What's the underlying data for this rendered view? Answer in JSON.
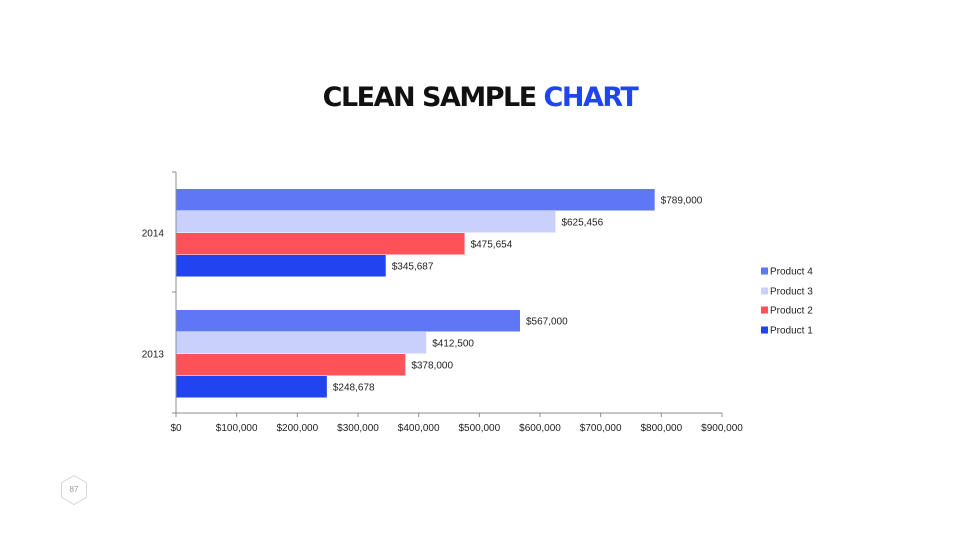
{
  "slide": {
    "title_main": "CLEAN SAMPLE ",
    "title_accent": "CHART",
    "page_number": "87"
  },
  "colors": {
    "title": "#111111",
    "accent": "#1f44f0",
    "product4": "#5d77f5",
    "product3": "#c9d0fb",
    "product2": "#fd5257",
    "product1": "#1f44f0"
  },
  "chart_data": {
    "type": "bar",
    "orientation": "horizontal",
    "categories": [
      "2014",
      "2013"
    ],
    "series": [
      {
        "name": "Product 4",
        "color": "#5d77f5",
        "values": [
          789000,
          567000
        ],
        "labels": [
          "$789,000",
          "$567,000"
        ]
      },
      {
        "name": "Product 3",
        "color": "#c9d0fb",
        "values": [
          625456,
          412500
        ],
        "labels": [
          "$625,456",
          "$412,500"
        ]
      },
      {
        "name": "Product 2",
        "color": "#fd5257",
        "values": [
          475654,
          378000
        ],
        "labels": [
          "$475,654",
          "$378,000"
        ]
      },
      {
        "name": "Product 1",
        "color": "#1f44f0",
        "values": [
          345687,
          248678
        ],
        "labels": [
          "$345,687",
          "$248,678"
        ]
      }
    ],
    "xlim": [
      0,
      900000
    ],
    "xticks": [
      0,
      100000,
      200000,
      300000,
      400000,
      500000,
      600000,
      700000,
      800000,
      900000
    ],
    "xtick_labels": [
      "$0",
      "$100,000",
      "$200,000",
      "$300,000",
      "$400,000",
      "$500,000",
      "$600,000",
      "$700,000",
      "$800,000",
      "$900,000"
    ],
    "title": "CLEAN SAMPLE CHART",
    "xlabel": "",
    "ylabel": "",
    "grid": false,
    "legend_position": "right"
  }
}
